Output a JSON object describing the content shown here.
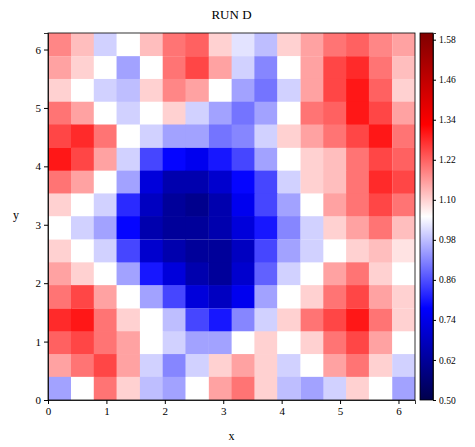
{
  "chart_data": {
    "type": "heatmap",
    "title": "RUN D",
    "x_label": "x",
    "y_label": "y",
    "xlim": [
      0,
      6.283
    ],
    "ylim": [
      0,
      6.283
    ],
    "xticks": [
      0,
      1,
      2,
      3,
      4,
      5,
      6
    ],
    "yticks": [
      0,
      1,
      2,
      3,
      4,
      5,
      6
    ],
    "x": [
      0.2,
      0.59,
      0.98,
      1.37,
      1.77,
      2.16,
      2.55,
      2.95,
      3.34,
      3.73,
      4.12,
      4.52,
      4.91,
      5.3,
      5.69,
      6.09
    ],
    "y": [
      6.09,
      5.69,
      5.3,
      4.91,
      4.52,
      4.12,
      3.73,
      3.34,
      2.95,
      2.55,
      2.16,
      1.77,
      1.37,
      0.98,
      0.59,
      0.2
    ],
    "values": [
      [
        1.18,
        1.12,
        1.0,
        1.05,
        1.12,
        1.2,
        1.22,
        1.1,
        1.02,
        0.98,
        1.1,
        1.15,
        1.2,
        1.22,
        1.18,
        1.15
      ],
      [
        1.15,
        1.1,
        1.05,
        0.95,
        1.05,
        1.2,
        1.25,
        1.15,
        1.0,
        0.92,
        1.05,
        1.15,
        1.25,
        1.28,
        1.2,
        1.12
      ],
      [
        1.1,
        1.05,
        1.0,
        0.98,
        1.1,
        1.18,
        1.15,
        1.05,
        0.95,
        0.9,
        1.0,
        1.15,
        1.25,
        1.3,
        1.22,
        1.1
      ],
      [
        1.2,
        1.15,
        1.05,
        1.0,
        1.05,
        1.1,
        1.0,
        0.95,
        0.9,
        0.95,
        1.05,
        1.2,
        1.22,
        1.3,
        1.25,
        1.15
      ],
      [
        1.25,
        1.28,
        1.2,
        1.05,
        1.0,
        0.95,
        0.95,
        0.9,
        0.92,
        1.0,
        1.1,
        1.15,
        1.2,
        1.25,
        1.3,
        1.2
      ],
      [
        1.3,
        1.25,
        1.15,
        1.0,
        0.85,
        0.78,
        0.75,
        0.8,
        0.85,
        0.95,
        1.05,
        1.1,
        1.12,
        1.2,
        1.25,
        1.22
      ],
      [
        1.2,
        1.15,
        1.05,
        0.95,
        0.72,
        0.65,
        0.65,
        0.7,
        0.78,
        0.85,
        1.0,
        1.1,
        1.12,
        1.2,
        1.28,
        1.25
      ],
      [
        1.1,
        1.05,
        1.0,
        0.82,
        0.68,
        0.62,
        0.6,
        0.65,
        0.75,
        0.85,
        0.95,
        1.05,
        1.15,
        1.2,
        1.25,
        1.2
      ],
      [
        1.05,
        1.0,
        0.95,
        0.78,
        0.65,
        0.62,
        0.62,
        0.65,
        0.72,
        0.8,
        0.92,
        1.0,
        1.1,
        1.15,
        1.2,
        1.12
      ],
      [
        1.1,
        1.05,
        1.0,
        0.85,
        0.7,
        0.65,
        0.62,
        0.62,
        0.68,
        0.85,
        0.95,
        1.0,
        1.05,
        1.1,
        1.12,
        1.08
      ],
      [
        1.15,
        1.1,
        1.05,
        0.95,
        0.8,
        0.72,
        0.65,
        0.62,
        0.7,
        0.88,
        1.0,
        1.05,
        1.15,
        1.2,
        1.1,
        1.05
      ],
      [
        1.2,
        1.25,
        1.15,
        1.05,
        0.95,
        0.85,
        0.72,
        0.68,
        0.75,
        0.95,
        1.05,
        1.1,
        1.2,
        1.25,
        1.15,
        1.1
      ],
      [
        1.28,
        1.3,
        1.2,
        1.1,
        1.05,
        0.98,
        0.85,
        0.8,
        0.92,
        1.0,
        1.1,
        1.2,
        1.25,
        1.3,
        1.2,
        1.1
      ],
      [
        1.22,
        1.25,
        1.2,
        1.15,
        1.05,
        1.0,
        0.95,
        0.95,
        1.05,
        1.1,
        1.05,
        1.1,
        1.2,
        1.25,
        1.15,
        1.05
      ],
      [
        1.15,
        1.2,
        1.25,
        1.15,
        1.0,
        0.92,
        1.0,
        1.1,
        1.15,
        1.1,
        1.0,
        1.05,
        1.15,
        1.2,
        1.1,
        1.0
      ],
      [
        0.95,
        1.05,
        1.2,
        1.1,
        0.98,
        0.95,
        1.05,
        1.15,
        1.2,
        1.1,
        0.98,
        0.95,
        1.0,
        1.1,
        1.05,
        0.95
      ]
    ],
    "colorbar": {
      "lim": [
        0.5,
        1.6
      ],
      "ticks": [
        {
          "value": 0.5,
          "label": "0.50"
        },
        {
          "value": 0.62,
          "label": "0.62"
        },
        {
          "value": 0.74,
          "label": "0.74"
        },
        {
          "value": 0.86,
          "label": "0.86"
        },
        {
          "value": 0.98,
          "label": "0.98"
        },
        {
          "value": 1.1,
          "label": "1.10"
        },
        {
          "value": 1.22,
          "label": "1.22"
        },
        {
          "value": 1.34,
          "label": "1.34"
        },
        {
          "value": 1.46,
          "label": "1.46"
        },
        {
          "value": 1.58,
          "label": "1.58"
        }
      ]
    }
  }
}
